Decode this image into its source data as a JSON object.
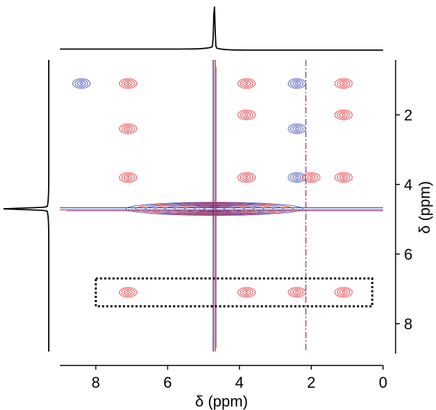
{
  "chart_data": {
    "type": "heatmap",
    "subtype": "2D NMR contour plot with projections",
    "title": "",
    "xlabel": "δ (ppm)",
    "ylabel": "δ (ppm)",
    "x_range": [
      9,
      0
    ],
    "y_range": [
      0.6,
      9.1
    ],
    "x_ticks": [
      8,
      6,
      4,
      2,
      0
    ],
    "y_ticks": [
      2,
      4,
      6,
      8
    ],
    "grid": false,
    "legend": "none",
    "colors": {
      "positive": "#e8333a",
      "negative": "#3b4cb8",
      "projection": "#000000",
      "box": "#000000"
    },
    "diagonal_peaks_ppm": [
      0.9,
      1.1,
      2.0,
      2.4,
      3.8,
      4.7,
      7.1
    ],
    "water_signal_ppm": 4.7,
    "t1_noise_ridge_ppm": 2.15,
    "cross_peaks": [
      {
        "x": 7.1,
        "y": 1.1,
        "sign": "positive"
      },
      {
        "x": 7.1,
        "y": 2.4,
        "sign": "positive"
      },
      {
        "x": 7.1,
        "y": 3.8,
        "sign": "positive"
      },
      {
        "x": 7.1,
        "y": 7.1,
        "sign": "positive"
      },
      {
        "x": 8.4,
        "y": 1.1,
        "sign": "negative"
      },
      {
        "x": 3.8,
        "y": 1.1,
        "sign": "positive"
      },
      {
        "x": 3.8,
        "y": 2.0,
        "sign": "positive"
      },
      {
        "x": 3.8,
        "y": 3.8,
        "sign": "positive"
      },
      {
        "x": 3.8,
        "y": 7.1,
        "sign": "positive"
      },
      {
        "x": 2.4,
        "y": 1.1,
        "sign": "negative"
      },
      {
        "x": 2.4,
        "y": 2.4,
        "sign": "negative"
      },
      {
        "x": 2.4,
        "y": 3.8,
        "sign": "negative"
      },
      {
        "x": 2.4,
        "y": 7.1,
        "sign": "positive"
      },
      {
        "x": 2.0,
        "y": 3.8,
        "sign": "positive"
      },
      {
        "x": 1.1,
        "y": 1.1,
        "sign": "positive"
      },
      {
        "x": 1.1,
        "y": 2.0,
        "sign": "positive"
      },
      {
        "x": 1.1,
        "y": 3.8,
        "sign": "positive"
      },
      {
        "x": 1.1,
        "y": 7.1,
        "sign": "positive"
      }
    ],
    "highlight_box": {
      "x_range": [
        8.0,
        0.3
      ],
      "y_range": [
        6.7,
        7.5
      ],
      "style": "dotted"
    }
  }
}
